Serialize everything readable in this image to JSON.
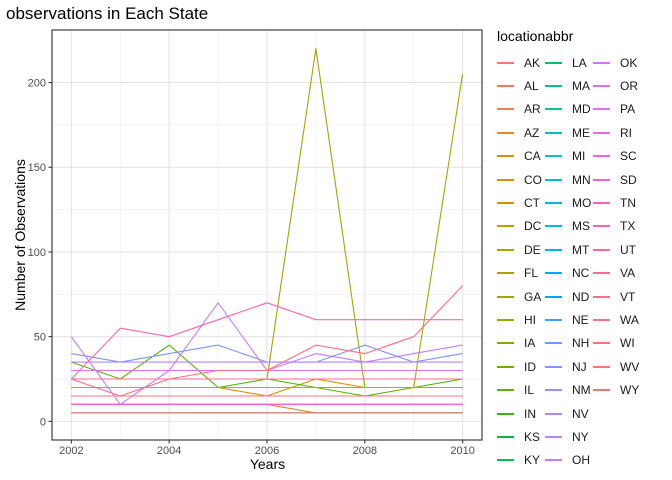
{
  "chart_data": {
    "type": "line",
    "title": "observations in Each State",
    "xlabel": "Years",
    "ylabel": "Number of Observations",
    "legend_title": "locationabbr",
    "legend_position": "right",
    "xlim": [
      2002,
      2010
    ],
    "ylim": [
      0,
      220
    ],
    "x_ticks": [
      2002,
      2004,
      2006,
      2008,
      2010
    ],
    "y_ticks": [
      0,
      50,
      100,
      150,
      200
    ],
    "grid": true,
    "x": [
      2002,
      2003,
      2004,
      2005,
      2006,
      2007,
      2008,
      2009,
      2010
    ],
    "series": [
      {
        "name": "AK",
        "color": "#F8766D",
        "values": [
          null,
          null,
          5,
          5,
          5,
          5,
          5,
          5,
          5
        ]
      },
      {
        "name": "AL",
        "color": "#F57B4E",
        "values": [
          10,
          10,
          10,
          10,
          10,
          10,
          10,
          10,
          10
        ]
      },
      {
        "name": "AR",
        "color": "#EF8047",
        "values": [
          10,
          10,
          10,
          10,
          10,
          10,
          10,
          10,
          10
        ]
      },
      {
        "name": "AZ",
        "color": "#E88526",
        "values": [
          10,
          10,
          10,
          10,
          10,
          5,
          5,
          5,
          5
        ]
      },
      {
        "name": "CA",
        "color": "#E28A0B",
        "values": [
          10,
          10,
          10,
          10,
          10,
          10,
          10,
          10,
          10
        ]
      },
      {
        "name": "CO",
        "color": "#DB8E00",
        "values": [
          20,
          20,
          20,
          20,
          15,
          25,
          20,
          20,
          20
        ]
      },
      {
        "name": "CT",
        "color": "#CE9500",
        "values": [
          15,
          15,
          15,
          15,
          15,
          15,
          15,
          15,
          15
        ]
      },
      {
        "name": "DC",
        "color": "#C49A00",
        "values": [
          5,
          5,
          5,
          5,
          5,
          5,
          5,
          5,
          5
        ]
      },
      {
        "name": "DE",
        "color": "#B79E00",
        "values": [
          15,
          15,
          15,
          15,
          15,
          15,
          15,
          15,
          15
        ]
      },
      {
        "name": "FL",
        "color": "#AAA200",
        "values": [
          25,
          25,
          25,
          25,
          25,
          220,
          20,
          20,
          205
        ]
      },
      {
        "name": "GA",
        "color": "#9DA700",
        "values": [
          20,
          20,
          20,
          20,
          20,
          20,
          20,
          20,
          20
        ]
      },
      {
        "name": "HI",
        "color": "#8FAA00",
        "values": [
          25,
          25,
          25,
          25,
          25,
          25,
          25,
          25,
          25
        ]
      },
      {
        "name": "IA",
        "color": "#7FAE00",
        "values": [
          15,
          15,
          15,
          15,
          15,
          15,
          15,
          15,
          15
        ]
      },
      {
        "name": "ID",
        "color": "#6DB100",
        "values": [
          20,
          20,
          20,
          20,
          20,
          20,
          20,
          20,
          20
        ]
      },
      {
        "name": "IL",
        "color": "#57B400",
        "values": [
          35,
          25,
          45,
          20,
          25,
          20,
          15,
          20,
          25
        ]
      },
      {
        "name": "IN",
        "color": "#36B700",
        "values": [
          15,
          15,
          15,
          15,
          15,
          15,
          15,
          15,
          15
        ]
      },
      {
        "name": "KS",
        "color": "#00BA38",
        "values": [
          15,
          15,
          15,
          15,
          15,
          15,
          15,
          15,
          15
        ]
      },
      {
        "name": "KY",
        "color": "#00BD5C",
        "values": [
          15,
          15,
          15,
          15,
          15,
          15,
          15,
          15,
          15
        ]
      },
      {
        "name": "LA",
        "color": "#00BF74",
        "values": [
          20,
          20,
          20,
          20,
          20,
          20,
          20,
          20,
          20
        ]
      },
      {
        "name": "MA",
        "color": "#00C08B",
        "values": [
          20,
          20,
          20,
          20,
          20,
          20,
          20,
          20,
          20
        ]
      },
      {
        "name": "MD",
        "color": "#00C19F",
        "values": [
          25,
          25,
          25,
          25,
          25,
          25,
          25,
          25,
          25
        ]
      },
      {
        "name": "ME",
        "color": "#00C0B0",
        "values": [
          15,
          15,
          15,
          15,
          15,
          15,
          15,
          15,
          15
        ]
      },
      {
        "name": "MI",
        "color": "#00BFC1",
        "values": [
          20,
          20,
          20,
          20,
          20,
          20,
          20,
          20,
          20
        ]
      },
      {
        "name": "MN",
        "color": "#00BCD0",
        "values": [
          25,
          25,
          25,
          25,
          25,
          25,
          25,
          25,
          25
        ]
      },
      {
        "name": "MO",
        "color": "#00B9E3",
        "values": [
          20,
          20,
          20,
          20,
          20,
          20,
          20,
          20,
          20
        ]
      },
      {
        "name": "MS",
        "color": "#00B4EF",
        "values": [
          10,
          10,
          10,
          10,
          10,
          10,
          10,
          10,
          10
        ]
      },
      {
        "name": "MT",
        "color": "#00B0F6",
        "values": [
          15,
          15,
          15,
          15,
          15,
          15,
          15,
          15,
          15
        ]
      },
      {
        "name": "NC",
        "color": "#00ABFD",
        "values": [
          20,
          20,
          20,
          20,
          20,
          20,
          20,
          20,
          20
        ]
      },
      {
        "name": "ND",
        "color": "#00A5FF",
        "values": [
          5,
          5,
          5,
          5,
          5,
          5,
          5,
          5,
          5
        ]
      },
      {
        "name": "NE",
        "color": "#35A2FF",
        "values": [
          15,
          15,
          15,
          15,
          15,
          15,
          15,
          15,
          15
        ]
      },
      {
        "name": "NH",
        "color": "#619CFF",
        "values": [
          10,
          10,
          10,
          10,
          10,
          10,
          10,
          10,
          10
        ]
      },
      {
        "name": "NJ",
        "color": "#7B96FF",
        "values": [
          40,
          35,
          40,
          45,
          35,
          35,
          45,
          35,
          40
        ]
      },
      {
        "name": "NM",
        "color": "#9590FF",
        "values": [
          15,
          15,
          15,
          15,
          15,
          15,
          15,
          15,
          15
        ]
      },
      {
        "name": "NV",
        "color": "#A58AFF",
        "values": [
          10,
          10,
          10,
          10,
          10,
          10,
          10,
          10,
          10
        ]
      },
      {
        "name": "NY",
        "color": "#B385FF",
        "values": [
          35,
          35,
          35,
          35,
          35,
          35,
          35,
          35,
          35
        ]
      },
      {
        "name": "OH",
        "color": "#C77CFF",
        "values": [
          50,
          10,
          30,
          70,
          30,
          40,
          35,
          40,
          45
        ]
      },
      {
        "name": "OK",
        "color": "#D375FB",
        "values": [
          15,
          15,
          15,
          15,
          15,
          15,
          15,
          15,
          15
        ]
      },
      {
        "name": "OR",
        "color": "#DE70F5",
        "values": [
          20,
          20,
          20,
          20,
          20,
          20,
          20,
          20,
          20
        ]
      },
      {
        "name": "PA",
        "color": "#E76BF3",
        "values": [
          30,
          30,
          30,
          30,
          30,
          30,
          30,
          30,
          30
        ]
      },
      {
        "name": "RI",
        "color": "#EF67EB",
        "values": [
          15,
          15,
          15,
          15,
          15,
          15,
          15,
          15,
          15
        ]
      },
      {
        "name": "SC",
        "color": "#F763E0",
        "values": [
          20,
          20,
          20,
          20,
          20,
          20,
          20,
          20,
          20
        ]
      },
      {
        "name": "SD",
        "color": "#FD61D1",
        "values": [
          10,
          10,
          10,
          10,
          10,
          10,
          10,
          10,
          10
        ]
      },
      {
        "name": "TN",
        "color": "#FF62BC",
        "values": [
          15,
          15,
          15,
          15,
          15,
          15,
          15,
          15,
          15
        ]
      },
      {
        "name": "TX",
        "color": "#FF64B0",
        "values": [
          25,
          55,
          50,
          60,
          70,
          60,
          60,
          60,
          60
        ]
      },
      {
        "name": "UT",
        "color": "#FF67A4",
        "values": [
          20,
          20,
          20,
          20,
          20,
          20,
          20,
          20,
          20
        ]
      },
      {
        "name": "VA",
        "color": "#FF6A98",
        "values": [
          25,
          25,
          25,
          25,
          25,
          25,
          25,
          25,
          25
        ]
      },
      {
        "name": "VT",
        "color": "#FF6C91",
        "values": [
          15,
          15,
          15,
          15,
          15,
          15,
          15,
          15,
          15
        ]
      },
      {
        "name": "WA",
        "color": "#FF6D84",
        "values": [
          25,
          15,
          25,
          30,
          30,
          45,
          40,
          50,
          80
        ]
      },
      {
        "name": "WI",
        "color": "#FC717F",
        "values": [
          15,
          15,
          15,
          15,
          15,
          15,
          15,
          15,
          15
        ]
      },
      {
        "name": "WV",
        "color": "#F8766D",
        "values": [
          20,
          20,
          20,
          20,
          20,
          20,
          20,
          20,
          20
        ]
      },
      {
        "name": "WY",
        "color": "#F2746A",
        "values": [
          5,
          5,
          5,
          5,
          5,
          5,
          5,
          5,
          5
        ]
      }
    ]
  }
}
